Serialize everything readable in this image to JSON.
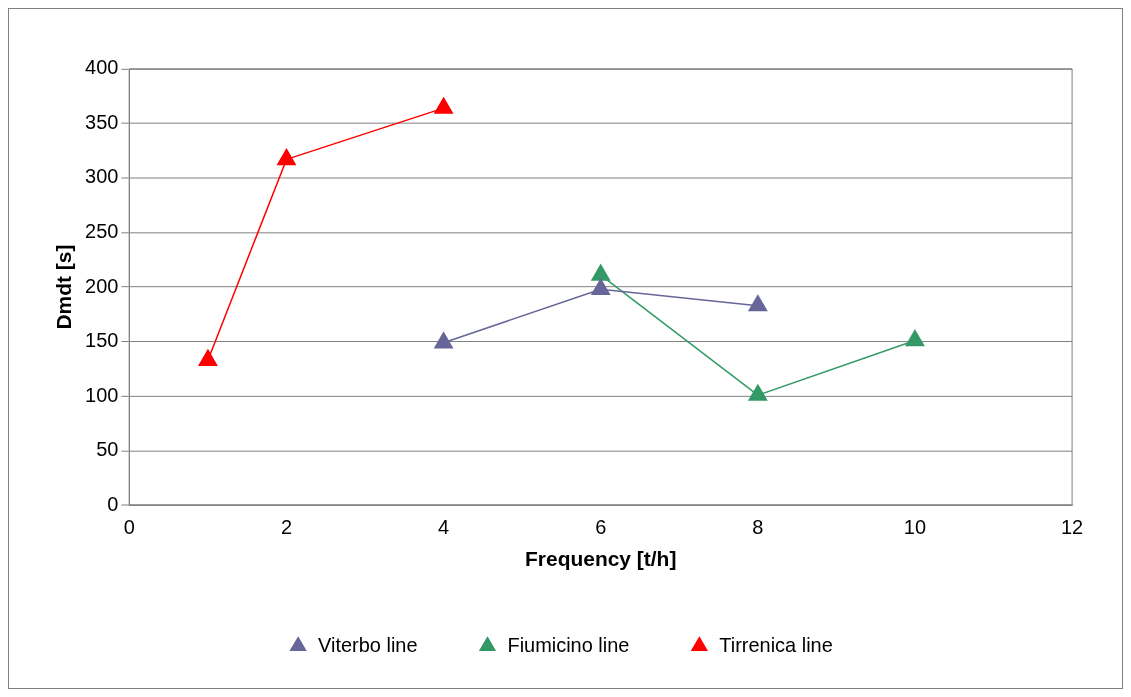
{
  "chart_data": {
    "type": "line",
    "xlabel": "Frequency [t/h]",
    "ylabel": "Dmdt [s]",
    "xlim": [
      0,
      12
    ],
    "xticks": [
      0,
      2,
      4,
      6,
      8,
      10,
      12
    ],
    "ylim": [
      0,
      400
    ],
    "yticks": [
      0,
      50,
      100,
      150,
      200,
      250,
      300,
      350,
      400
    ],
    "grid": "y",
    "legend": "bottom",
    "marker": "triangle",
    "line_style": "solid",
    "series": [
      {
        "name": "Viterbo line",
        "color": "#666699",
        "x": [
          4,
          6,
          8
        ],
        "values": [
          149,
          198,
          183
        ]
      },
      {
        "name": "Fiumicino line",
        "color": "#339966",
        "x": [
          6,
          8,
          10
        ],
        "values": [
          211,
          101,
          151
        ]
      },
      {
        "name": "Tirrenica line",
        "color": "#ff0000",
        "x": [
          1,
          2,
          4
        ],
        "values": [
          133,
          317,
          364
        ]
      }
    ]
  }
}
